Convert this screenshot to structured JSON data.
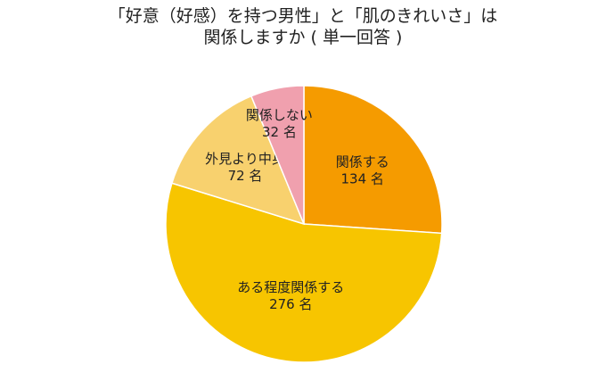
{
  "title": {
    "line1": "「好意（好感）を持つ男性」と「肌のきれいさ」は",
    "line2": "関係しますか ( 単一回答 )"
  },
  "chart_data": {
    "type": "pie",
    "title": "「好意（好感）を持つ男性」と「肌のきれいさ」は 関係しますか ( 単一回答 )",
    "unit": "名",
    "slices": [
      {
        "label": "関係する",
        "value": 134,
        "value_text": "134 名",
        "color": "#F59B00"
      },
      {
        "label": "ある程度関係する",
        "value": 276,
        "value_text": "276 名",
        "color": "#F7C500"
      },
      {
        "label": "外見より中身",
        "value": 72,
        "value_text": "72 名",
        "color": "#F8D16E"
      },
      {
        "label": "関係しない",
        "value": 32,
        "value_text": "32 名",
        "color": "#F0A0AE"
      }
    ]
  }
}
